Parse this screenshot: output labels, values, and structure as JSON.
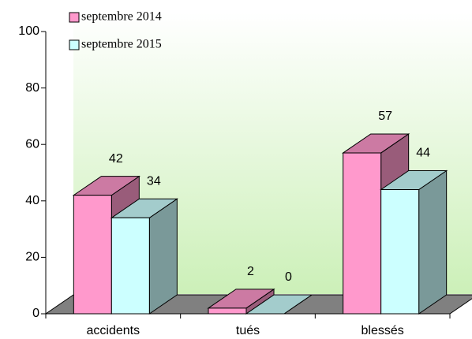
{
  "chart_data": {
    "type": "bar3d",
    "categories": [
      "accidents",
      "tués",
      "blessés"
    ],
    "series": [
      {
        "name": "septembre 2014",
        "color": "#ff99cc",
        "values": [
          42,
          2,
          57
        ]
      },
      {
        "name": "septembre 2015",
        "color": "#ccffff",
        "values": [
          34,
          0,
          44
        ]
      }
    ],
    "ylim": [
      0,
      100
    ],
    "yticks": [
      0,
      20,
      40,
      60,
      80,
      100
    ],
    "legend": "top-left"
  }
}
